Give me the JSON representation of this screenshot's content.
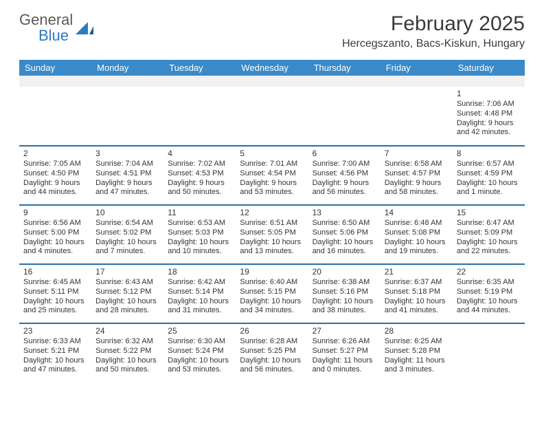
{
  "brand": {
    "text1": "General",
    "text2": "Blue"
  },
  "title": "February 2025",
  "location": "Hercegszanto, Bacs-Kiskun, Hungary",
  "colors": {
    "header_bg": "#3a8ac9",
    "header_text": "#ffffff",
    "week_sep": "#2a6fa8",
    "blank_row": "#f1f1f1",
    "body_text": "#333333",
    "brand_gray": "#5a5a5a",
    "brand_blue": "#2a7bc0"
  },
  "day_headers": [
    "Sunday",
    "Monday",
    "Tuesday",
    "Wednesday",
    "Thursday",
    "Friday",
    "Saturday"
  ],
  "weeks": [
    [
      null,
      null,
      null,
      null,
      null,
      null,
      {
        "n": "1",
        "sr": "Sunrise: 7:06 AM",
        "ss": "Sunset: 4:48 PM",
        "dl": "Daylight: 9 hours and 42 minutes."
      }
    ],
    [
      {
        "n": "2",
        "sr": "Sunrise: 7:05 AM",
        "ss": "Sunset: 4:50 PM",
        "dl": "Daylight: 9 hours and 44 minutes."
      },
      {
        "n": "3",
        "sr": "Sunrise: 7:04 AM",
        "ss": "Sunset: 4:51 PM",
        "dl": "Daylight: 9 hours and 47 minutes."
      },
      {
        "n": "4",
        "sr": "Sunrise: 7:02 AM",
        "ss": "Sunset: 4:53 PM",
        "dl": "Daylight: 9 hours and 50 minutes."
      },
      {
        "n": "5",
        "sr": "Sunrise: 7:01 AM",
        "ss": "Sunset: 4:54 PM",
        "dl": "Daylight: 9 hours and 53 minutes."
      },
      {
        "n": "6",
        "sr": "Sunrise: 7:00 AM",
        "ss": "Sunset: 4:56 PM",
        "dl": "Daylight: 9 hours and 56 minutes."
      },
      {
        "n": "7",
        "sr": "Sunrise: 6:58 AM",
        "ss": "Sunset: 4:57 PM",
        "dl": "Daylight: 9 hours and 58 minutes."
      },
      {
        "n": "8",
        "sr": "Sunrise: 6:57 AM",
        "ss": "Sunset: 4:59 PM",
        "dl": "Daylight: 10 hours and 1 minute."
      }
    ],
    [
      {
        "n": "9",
        "sr": "Sunrise: 6:56 AM",
        "ss": "Sunset: 5:00 PM",
        "dl": "Daylight: 10 hours and 4 minutes."
      },
      {
        "n": "10",
        "sr": "Sunrise: 6:54 AM",
        "ss": "Sunset: 5:02 PM",
        "dl": "Daylight: 10 hours and 7 minutes."
      },
      {
        "n": "11",
        "sr": "Sunrise: 6:53 AM",
        "ss": "Sunset: 5:03 PM",
        "dl": "Daylight: 10 hours and 10 minutes."
      },
      {
        "n": "12",
        "sr": "Sunrise: 6:51 AM",
        "ss": "Sunset: 5:05 PM",
        "dl": "Daylight: 10 hours and 13 minutes."
      },
      {
        "n": "13",
        "sr": "Sunrise: 6:50 AM",
        "ss": "Sunset: 5:06 PM",
        "dl": "Daylight: 10 hours and 16 minutes."
      },
      {
        "n": "14",
        "sr": "Sunrise: 6:48 AM",
        "ss": "Sunset: 5:08 PM",
        "dl": "Daylight: 10 hours and 19 minutes."
      },
      {
        "n": "15",
        "sr": "Sunrise: 6:47 AM",
        "ss": "Sunset: 5:09 PM",
        "dl": "Daylight: 10 hours and 22 minutes."
      }
    ],
    [
      {
        "n": "16",
        "sr": "Sunrise: 6:45 AM",
        "ss": "Sunset: 5:11 PM",
        "dl": "Daylight: 10 hours and 25 minutes."
      },
      {
        "n": "17",
        "sr": "Sunrise: 6:43 AM",
        "ss": "Sunset: 5:12 PM",
        "dl": "Daylight: 10 hours and 28 minutes."
      },
      {
        "n": "18",
        "sr": "Sunrise: 6:42 AM",
        "ss": "Sunset: 5:14 PM",
        "dl": "Daylight: 10 hours and 31 minutes."
      },
      {
        "n": "19",
        "sr": "Sunrise: 6:40 AM",
        "ss": "Sunset: 5:15 PM",
        "dl": "Daylight: 10 hours and 34 minutes."
      },
      {
        "n": "20",
        "sr": "Sunrise: 6:38 AM",
        "ss": "Sunset: 5:16 PM",
        "dl": "Daylight: 10 hours and 38 minutes."
      },
      {
        "n": "21",
        "sr": "Sunrise: 6:37 AM",
        "ss": "Sunset: 5:18 PM",
        "dl": "Daylight: 10 hours and 41 minutes."
      },
      {
        "n": "22",
        "sr": "Sunrise: 6:35 AM",
        "ss": "Sunset: 5:19 PM",
        "dl": "Daylight: 10 hours and 44 minutes."
      }
    ],
    [
      {
        "n": "23",
        "sr": "Sunrise: 6:33 AM",
        "ss": "Sunset: 5:21 PM",
        "dl": "Daylight: 10 hours and 47 minutes."
      },
      {
        "n": "24",
        "sr": "Sunrise: 6:32 AM",
        "ss": "Sunset: 5:22 PM",
        "dl": "Daylight: 10 hours and 50 minutes."
      },
      {
        "n": "25",
        "sr": "Sunrise: 6:30 AM",
        "ss": "Sunset: 5:24 PM",
        "dl": "Daylight: 10 hours and 53 minutes."
      },
      {
        "n": "26",
        "sr": "Sunrise: 6:28 AM",
        "ss": "Sunset: 5:25 PM",
        "dl": "Daylight: 10 hours and 56 minutes."
      },
      {
        "n": "27",
        "sr": "Sunrise: 6:26 AM",
        "ss": "Sunset: 5:27 PM",
        "dl": "Daylight: 11 hours and 0 minutes."
      },
      {
        "n": "28",
        "sr": "Sunrise: 6:25 AM",
        "ss": "Sunset: 5:28 PM",
        "dl": "Daylight: 11 hours and 3 minutes."
      },
      null
    ]
  ]
}
